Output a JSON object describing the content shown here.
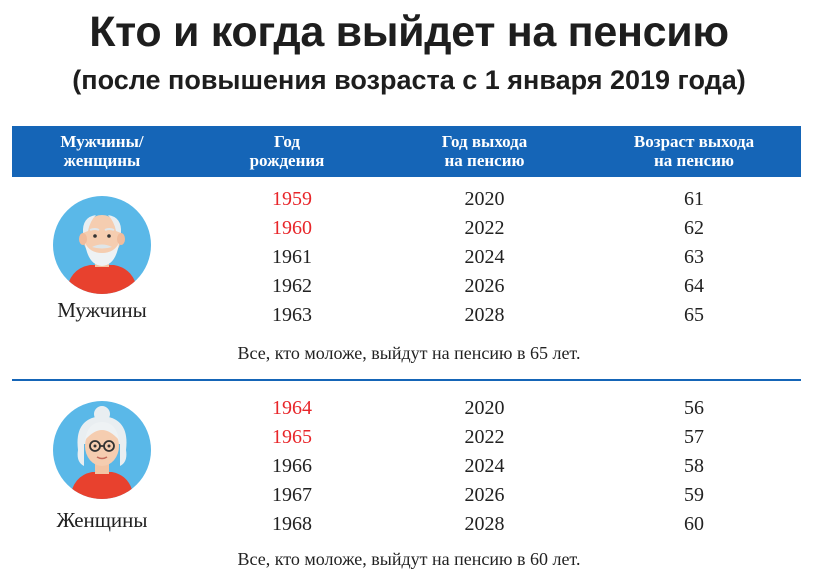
{
  "title": "Кто и когда выйдет на пенсию",
  "subtitle": "(после повышения возраста с 1 января 2019 года)",
  "header": {
    "col1": [
      "Мужчины/",
      "женщины"
    ],
    "col2": [
      "Год",
      "рождения"
    ],
    "col3": [
      "Год выхода",
      "на пенсию"
    ],
    "col4": [
      "Возраст выхода",
      "на пенсию"
    ]
  },
  "colors": {
    "header_bg": "#1565b7",
    "highlight": "#e8262a"
  },
  "men": {
    "label": "Мужчины",
    "icon": "elderly-man-icon",
    "rows": [
      {
        "birth": "1959",
        "retire": "2020",
        "age": "61",
        "highlight": true
      },
      {
        "birth": "1960",
        "retire": "2022",
        "age": "62",
        "highlight": true
      },
      {
        "birth": "1961",
        "retire": "2024",
        "age": "63",
        "highlight": false
      },
      {
        "birth": "1962",
        "retire": "2026",
        "age": "64",
        "highlight": false
      },
      {
        "birth": "1963",
        "retire": "2028",
        "age": "65",
        "highlight": false
      }
    ],
    "note": "Все, кто моложе, выйдут на пенсию в 65 лет."
  },
  "women": {
    "label": "Женщины",
    "icon": "elderly-woman-icon",
    "rows": [
      {
        "birth": "1964",
        "retire": "2020",
        "age": "56",
        "highlight": true
      },
      {
        "birth": "1965",
        "retire": "2022",
        "age": "57",
        "highlight": true
      },
      {
        "birth": "1966",
        "retire": "2024",
        "age": "58",
        "highlight": false
      },
      {
        "birth": "1967",
        "retire": "2026",
        "age": "59",
        "highlight": false
      },
      {
        "birth": "1968",
        "retire": "2028",
        "age": "60",
        "highlight": false
      }
    ],
    "note": "Все, кто моложе, выйдут на пенсию в 60 лет."
  }
}
